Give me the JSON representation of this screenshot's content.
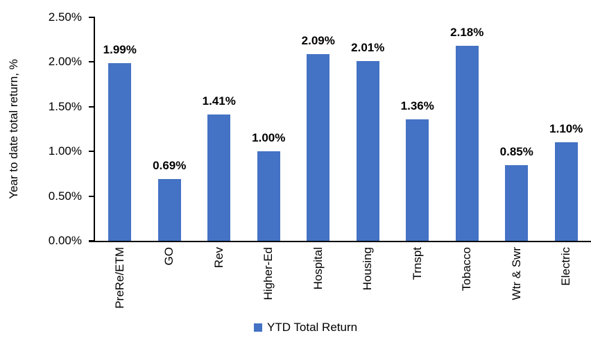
{
  "chart_data": {
    "type": "bar",
    "title": "",
    "categories": [
      "PreRe/ETM",
      "GO",
      "Rev",
      "Higher-Ed",
      "Hospital",
      "Housing",
      "Trnspt",
      "Tobacco",
      "Wtr & Swr",
      "Electric"
    ],
    "values": [
      1.99,
      0.69,
      1.41,
      1.0,
      2.09,
      2.01,
      1.36,
      2.18,
      0.85,
      1.1
    ],
    "data_labels": [
      "1.99%",
      "0.69%",
      "1.41%",
      "1.00%",
      "2.09%",
      "2.01%",
      "1.36%",
      "2.18%",
      "0.85%",
      "1.10%"
    ],
    "xlabel": "",
    "ylabel": "Year to date total return, %",
    "ylim": [
      0,
      2.5
    ],
    "y_ticks": [
      {
        "value": 2.5,
        "label": "2.50%"
      },
      {
        "value": 2.0,
        "label": "2.00%"
      },
      {
        "value": 1.5,
        "label": "1.50%"
      },
      {
        "value": 1.0,
        "label": "1.00%"
      },
      {
        "value": 0.5,
        "label": "0.50%"
      },
      {
        "value": 0.0,
        "label": "0.00%"
      }
    ],
    "grid": false,
    "legend_position": "bottom",
    "legend": [
      {
        "label": "YTD Total Return",
        "color": "#4472C4"
      }
    ],
    "bar_color": "#4472C4",
    "axis_color": "#000000",
    "background_color": "#FFFFFF"
  }
}
